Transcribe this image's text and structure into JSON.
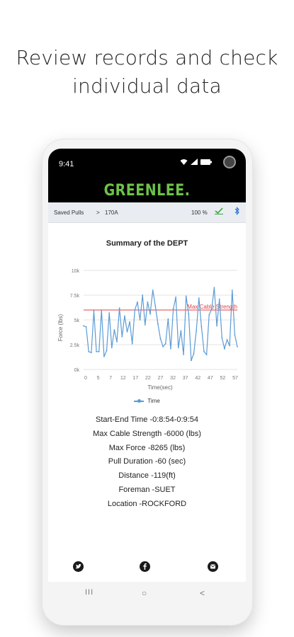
{
  "headline": {
    "line1": "Review records and check",
    "line2": "individual data"
  },
  "status_bar": {
    "time": "9:41"
  },
  "app": {
    "logo": "GREENLEE."
  },
  "breadcrumb": {
    "saved_pulls": "Saved Pulls",
    "separator": ">",
    "current": "170A",
    "zoom": "100 %",
    "icons": [
      "checkmark-icon",
      "bluetooth-icon"
    ]
  },
  "chart_data": {
    "type": "line",
    "title": "Summary of the DEPT",
    "xlabel": "Time(sec)",
    "ylabel": "Force (lbs)",
    "ylim": [
      0,
      10000
    ],
    "y_ticks": [
      "0k",
      "2.5k",
      "5k",
      "7.5k",
      "10k"
    ],
    "x_ticks": [
      "0",
      "5",
      "7",
      "12",
      "17",
      "22",
      "27",
      "32",
      "37",
      "42",
      "47",
      "52",
      "57"
    ],
    "grid": true,
    "legend": "bottom",
    "series": [
      {
        "name": "Time",
        "color": "#5b9bd5",
        "values": [
          4400,
          4300,
          1800,
          1700,
          5900,
          1800,
          1800,
          6000,
          1300,
          1900,
          5700,
          2200,
          4000,
          2800,
          6200,
          3300,
          5400,
          3800,
          4800,
          2600,
          6000,
          6800,
          5000,
          7500,
          4500,
          6800,
          5600,
          8000,
          6400,
          4600,
          3100,
          2300,
          2600,
          5100,
          2100,
          6100,
          7300,
          2200,
          3900,
          1500,
          7400,
          5600,
          900,
          1600,
          3900,
          7200,
          4300,
          1800,
          1500,
          5500,
          6100,
          8265,
          4400,
          7100,
          3200,
          2100,
          3000,
          2400,
          8000,
          3500,
          2300
        ]
      }
    ],
    "reference_line": {
      "label": "Max Cable Strength",
      "value": 6000,
      "color": "#e04040"
    }
  },
  "details": [
    "Start-End Time -0:8:54-0:9:54",
    "Max Cable Strength -6000 (lbs)",
    "Max Force -8265 (lbs)",
    "Pull Duration -60 (sec)",
    "Distance -119(ft)",
    "Foreman -SUET",
    "Location -ROCKFORD"
  ],
  "social": [
    "twitter-icon",
    "facebook-icon",
    "email-icon"
  ],
  "nav": {
    "recent": "III",
    "home": "○",
    "back": "<"
  }
}
